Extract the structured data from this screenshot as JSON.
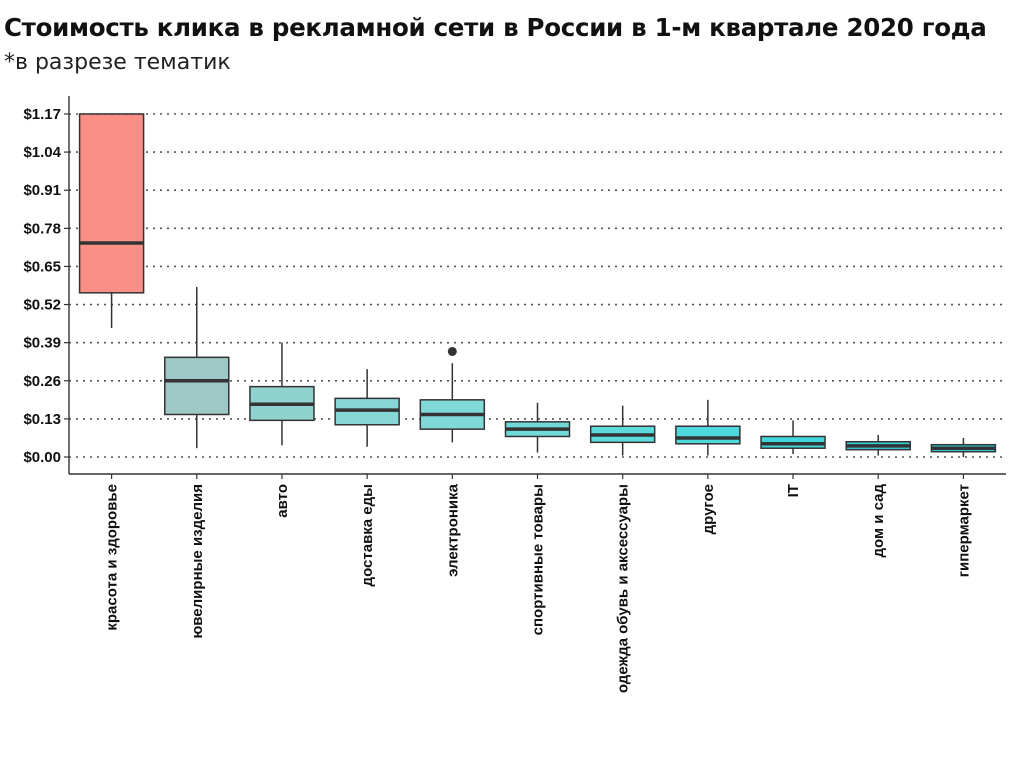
{
  "chart_data": {
    "type": "boxplot",
    "title": "Стоимость клика в рекламной сети в России в 1-м квартале 2020 года",
    "subtitle": "*в разрезе тематик",
    "xlabel": "",
    "ylabel": "",
    "ylim": [
      -0.04,
      1.18
    ],
    "y_ticks": [
      0.0,
      0.13,
      0.26,
      0.39,
      0.52,
      0.65,
      0.78,
      0.91,
      1.04,
      1.17
    ],
    "y_tick_labels": [
      "$0.00",
      "$0.13",
      "$0.26",
      "$0.39",
      "$0.52",
      "$0.65",
      "$0.78",
      "$0.91",
      "$1.04",
      "$1.17"
    ],
    "grid": "horizontal-dotted",
    "categories": [
      {
        "label": "красота и здоровье",
        "whisker_low": 0.44,
        "q1": 0.56,
        "median": 0.73,
        "q3": 1.17,
        "whisker_high": 1.17,
        "outliers": [],
        "color": "#fa8f86"
      },
      {
        "label": "ювелирные изделия",
        "whisker_low": 0.03,
        "q1": 0.145,
        "median": 0.26,
        "q3": 0.34,
        "whisker_high": 0.58,
        "outliers": [],
        "color": "#9ec8c6"
      },
      {
        "label": "авто",
        "whisker_low": 0.04,
        "q1": 0.125,
        "median": 0.18,
        "q3": 0.24,
        "whisker_high": 0.39,
        "outliers": [],
        "color": "#8fd2d0"
      },
      {
        "label": "доставка еды",
        "whisker_low": 0.035,
        "q1": 0.11,
        "median": 0.16,
        "q3": 0.2,
        "whisker_high": 0.3,
        "outliers": [],
        "color": "#86d7d6"
      },
      {
        "label": "электроника",
        "whisker_low": 0.05,
        "q1": 0.095,
        "median": 0.145,
        "q3": 0.195,
        "whisker_high": 0.32,
        "outliers": [
          0.36
        ],
        "color": "#7fd9d9"
      },
      {
        "label": "спортивные товары",
        "whisker_low": 0.015,
        "q1": 0.07,
        "median": 0.095,
        "q3": 0.12,
        "whisker_high": 0.185,
        "outliers": [],
        "color": "#6fdada"
      },
      {
        "label": "одежда обувь и аксессуары",
        "whisker_low": 0.005,
        "q1": 0.05,
        "median": 0.075,
        "q3": 0.105,
        "whisker_high": 0.175,
        "outliers": [],
        "color": "#5cdbdc"
      },
      {
        "label": "другое",
        "whisker_low": 0.005,
        "q1": 0.045,
        "median": 0.065,
        "q3": 0.105,
        "whisker_high": 0.195,
        "outliers": [],
        "color": "#4dd9dd"
      },
      {
        "label": "IT",
        "whisker_low": 0.01,
        "q1": 0.03,
        "median": 0.045,
        "q3": 0.07,
        "whisker_high": 0.125,
        "outliers": [],
        "color": "#3fd6dc"
      },
      {
        "label": "дом и сад",
        "whisker_low": 0.005,
        "q1": 0.025,
        "median": 0.038,
        "q3": 0.052,
        "whisker_high": 0.075,
        "outliers": [],
        "color": "#33d2db"
      },
      {
        "label": "гипермаркет",
        "whisker_low": 0.0,
        "q1": 0.018,
        "median": 0.03,
        "q3": 0.042,
        "whisker_high": 0.065,
        "outliers": [],
        "color": "#2ccdd8"
      }
    ]
  }
}
